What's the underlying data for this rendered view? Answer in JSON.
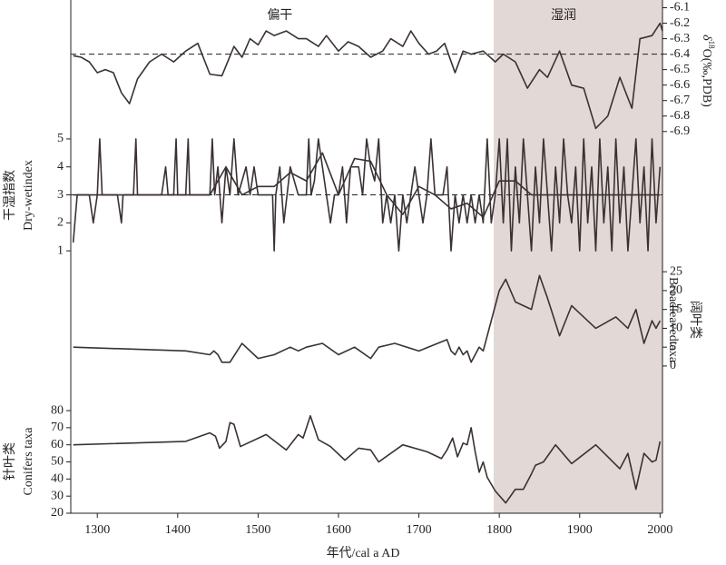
{
  "x_axis": {
    "label": "年代/cal a AD",
    "xlim": [
      1267,
      2003
    ],
    "xticks": [
      1300,
      1400,
      1500,
      1600,
      1700,
      1800,
      1900,
      2000
    ]
  },
  "highlight": [
    1793,
    2003
  ],
  "chart_data": [
    {
      "type": "line",
      "side": "right",
      "ylabel": [
        "δ",
        "18",
        "O(‰,PDB)"
      ],
      "ylim": [
        -6.96,
        -6.05
      ],
      "yticks": [
        -6.1,
        -6.2,
        -6.3,
        -6.4,
        -6.5,
        -6.6,
        -6.7,
        -6.8,
        -6.9
      ],
      "reference_line": -6.4,
      "annotations": [
        {
          "text": "偏干",
          "x": 1527
        },
        {
          "text": "湿润",
          "x": 1880
        }
      ],
      "series": [
        {
          "color": "#3a3132",
          "x": [
            1270,
            1280,
            1290,
            1300,
            1310,
            1320,
            1330,
            1340,
            1350,
            1365,
            1380,
            1395,
            1410,
            1425,
            1440,
            1455,
            1470,
            1480,
            1490,
            1500,
            1510,
            1520,
            1535,
            1550,
            1560,
            1575,
            1585,
            1600,
            1612,
            1625,
            1640,
            1655,
            1665,
            1680,
            1690,
            1700,
            1712,
            1722,
            1732,
            1745,
            1755,
            1765,
            1780,
            1795,
            1805,
            1820,
            1835,
            1850,
            1860,
            1875,
            1890,
            1905,
            1920,
            1935,
            1950,
            1965,
            1975,
            1990,
            2000,
            2003
          ],
          "values": [
            -6.41,
            -6.42,
            -6.45,
            -6.52,
            -6.5,
            -6.52,
            -6.65,
            -6.72,
            -6.56,
            -6.45,
            -6.4,
            -6.45,
            -6.38,
            -6.33,
            -6.53,
            -6.54,
            -6.35,
            -6.42,
            -6.3,
            -6.34,
            -6.25,
            -6.28,
            -6.25,
            -6.3,
            -6.3,
            -6.35,
            -6.28,
            -6.38,
            -6.32,
            -6.35,
            -6.42,
            -6.38,
            -6.3,
            -6.35,
            -6.25,
            -6.33,
            -6.4,
            -6.38,
            -6.33,
            -6.52,
            -6.38,
            -6.4,
            -6.38,
            -6.45,
            -6.4,
            -6.45,
            -6.62,
            -6.5,
            -6.55,
            -6.38,
            -6.6,
            -6.62,
            -6.88,
            -6.8,
            -6.55,
            -6.75,
            -6.3,
            -6.28,
            -6.2,
            -6.25
          ]
        }
      ]
    },
    {
      "type": "line",
      "side": "left",
      "ylabel": [
        "干湿指数",
        "Dry-wetindex"
      ],
      "ylim": [
        0.55,
        5.42
      ],
      "yticks": [
        1,
        2,
        3,
        4,
        5
      ],
      "reference_line": 3,
      "series": [
        {
          "color": "#3a3132",
          "x": [
            1270,
            1275,
            1290,
            1295,
            1300,
            1303,
            1306,
            1320,
            1325,
            1330,
            1332,
            1345,
            1348,
            1350,
            1380,
            1385,
            1388,
            1395,
            1398,
            1400,
            1410,
            1413,
            1415,
            1440,
            1443,
            1446,
            1450,
            1455,
            1460,
            1465,
            1470,
            1475,
            1480,
            1485,
            1490,
            1495,
            1500,
            1510,
            1518,
            1520,
            1522,
            1527,
            1532,
            1540,
            1550,
            1560,
            1563,
            1566,
            1570,
            1575,
            1580,
            1585,
            1590,
            1595,
            1600,
            1605,
            1610,
            1615,
            1625,
            1630,
            1635,
            1640,
            1645,
            1650,
            1655,
            1660,
            1665,
            1670,
            1675,
            1680,
            1685,
            1690,
            1695,
            1700,
            1705,
            1710,
            1715,
            1720,
            1730,
            1735,
            1740,
            1745,
            1750,
            1755,
            1760,
            1765,
            1770,
            1775,
            1780,
            1785,
            1790,
            1795,
            1800,
            1805,
            1810,
            1815,
            1820,
            1825,
            1830,
            1835,
            1840,
            1845,
            1850,
            1855,
            1860,
            1865,
            1870,
            1875,
            1880,
            1885,
            1890,
            1895,
            1900,
            1905,
            1910,
            1915,
            1920,
            1925,
            1930,
            1935,
            1940,
            1945,
            1950,
            1955,
            1960,
            1965,
            1970,
            1975,
            1980,
            1985,
            1990,
            1995,
            2000
          ],
          "values": [
            1.3,
            3,
            3,
            2,
            3,
            5,
            3,
            3,
            3,
            2,
            3,
            3,
            5,
            3,
            3,
            4,
            3,
            3,
            5,
            3,
            3,
            5,
            3,
            3,
            5,
            3,
            4,
            2,
            4,
            3,
            5,
            3,
            3.5,
            4,
            3,
            4,
            3,
            3,
            3,
            1,
            3,
            4,
            2,
            4,
            3,
            3,
            5,
            3,
            3.5,
            5,
            4,
            3,
            2,
            3,
            3,
            4,
            2,
            4,
            4,
            3,
            5,
            4,
            3.5,
            5,
            2,
            3,
            2,
            3,
            1,
            3,
            2,
            3,
            4,
            3,
            2,
            3,
            5,
            3,
            3,
            4,
            1,
            3,
            2,
            3,
            2,
            3,
            2,
            3,
            2,
            5,
            2,
            3,
            5,
            2,
            5,
            1,
            4,
            2,
            5,
            3,
            1,
            4,
            2,
            5,
            3,
            1,
            4,
            2,
            5,
            3,
            2,
            4,
            1,
            5,
            2,
            4,
            1,
            5,
            2,
            4,
            1,
            5,
            2,
            4,
            1,
            3,
            5,
            2,
            4,
            1,
            5,
            2,
            4
          ]
        },
        {
          "color": "#3a3132",
          "x": [
            1270,
            1440,
            1460,
            1480,
            1500,
            1520,
            1540,
            1560,
            1580,
            1600,
            1620,
            1640,
            1660,
            1680,
            1700,
            1720,
            1740,
            1760,
            1780,
            1800,
            1820,
            1840,
            1860,
            2000
          ],
          "values": [
            3,
            3,
            4,
            3,
            3.3,
            3.3,
            3.8,
            3.5,
            4.5,
            3,
            4.3,
            4.2,
            3,
            2.3,
            3.3,
            3,
            2.5,
            2.7,
            2.2,
            3.5,
            3.5,
            3,
            3,
            3
          ]
        }
      ]
    },
    {
      "type": "line",
      "side": "right",
      "ylabel": [
        "阔叶类",
        "Broadleavedtaxa"
      ],
      "ylim": [
        -1.7,
        27.2
      ],
      "yticks": [
        0,
        5,
        10,
        15,
        20,
        25
      ],
      "series": [
        {
          "color": "#3a3132",
          "x": [
            1270,
            1410,
            1440,
            1445,
            1450,
            1455,
            1465,
            1480,
            1500,
            1520,
            1540,
            1550,
            1560,
            1580,
            1600,
            1620,
            1640,
            1650,
            1670,
            1700,
            1735,
            1740,
            1745,
            1750,
            1755,
            1760,
            1765,
            1770,
            1775,
            1780,
            1790,
            1800,
            1808,
            1820,
            1840,
            1850,
            1860,
            1875,
            1890,
            1920,
            1945,
            1960,
            1970,
            1980,
            1990,
            1995,
            2000
          ],
          "values": [
            5,
            4,
            3,
            4,
            3,
            1,
            1,
            6,
            2,
            3,
            5,
            4,
            5,
            6,
            3,
            5,
            2,
            5,
            6,
            4,
            7,
            4,
            3,
            5,
            3,
            4,
            1,
            3,
            5,
            4,
            12,
            20,
            23,
            17,
            15,
            24,
            18,
            8,
            16,
            10,
            13,
            10,
            15,
            6,
            12,
            10,
            12
          ]
        }
      ]
    },
    {
      "type": "line",
      "side": "left",
      "ylabel": [
        "针叶类",
        "Conifers taxa"
      ],
      "ylim": [
        20,
        86.4
      ],
      "yticks": [
        20,
        30,
        40,
        50,
        60,
        70,
        80
      ],
      "series": [
        {
          "color": "#3a3132",
          "x": [
            1270,
            1410,
            1440,
            1447,
            1452,
            1460,
            1465,
            1470,
            1478,
            1510,
            1535,
            1550,
            1556,
            1565,
            1575,
            1590,
            1608,
            1625,
            1640,
            1650,
            1680,
            1710,
            1728,
            1735,
            1742,
            1748,
            1755,
            1760,
            1765,
            1770,
            1775,
            1780,
            1785,
            1795,
            1808,
            1820,
            1830,
            1840,
            1845,
            1855,
            1870,
            1890,
            1920,
            1950,
            1960,
            1970,
            1980,
            1990,
            1995,
            2000
          ],
          "values": [
            60,
            62,
            67,
            65,
            58,
            62,
            73,
            72,
            59,
            66,
            57,
            66,
            64,
            77,
            63,
            59,
            51,
            58,
            57,
            50,
            60,
            56,
            52,
            57,
            64,
            53,
            61,
            60,
            70,
            56,
            44,
            50,
            41,
            33,
            26,
            34,
            34,
            43,
            48,
            50,
            60,
            49,
            60,
            46,
            55,
            34,
            55,
            50,
            51,
            62
          ]
        }
      ]
    }
  ]
}
